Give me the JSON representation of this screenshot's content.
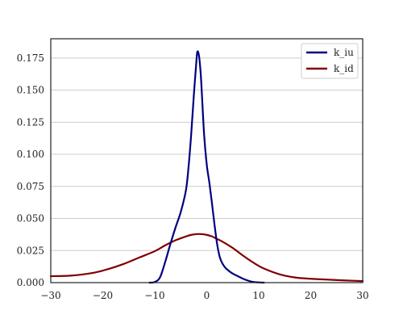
{
  "chart_data": {
    "type": "line",
    "title": "",
    "xlabel": "",
    "ylabel": "",
    "xlim": [
      -30,
      30
    ],
    "ylim": [
      0,
      0.19
    ],
    "grid": "y-only",
    "legend": "top-right",
    "x_ticks": [
      -30,
      -20,
      -10,
      0,
      10,
      20,
      30
    ],
    "x_tick_labels": [
      "−30",
      "−20",
      "−10",
      "0",
      "10",
      "20",
      "30"
    ],
    "y_ticks": [
      0.0,
      0.025,
      0.05,
      0.075,
      0.1,
      0.125,
      0.15,
      0.175
    ],
    "y_tick_labels": [
      "0.000",
      "0.025",
      "0.050",
      "0.075",
      "0.100",
      "0.125",
      "0.150",
      "0.175"
    ],
    "series": [
      {
        "name": "k_iu",
        "color": "#00007f",
        "x": [
          -11.0,
          -10.0,
          -9.0,
          -8.0,
          -7.0,
          -6.0,
          -5.0,
          -4.0,
          -3.5,
          -3.0,
          -2.5,
          -2.0,
          -1.8,
          -1.5,
          -1.2,
          -1.0,
          -0.5,
          0.0,
          0.5,
          1.0,
          1.5,
          2.0,
          2.5,
          3.0,
          3.5,
          4.0,
          5.0,
          6.0,
          7.0,
          8.0,
          9.0,
          10.0,
          11.0
        ],
        "values": [
          0.0,
          0.0005,
          0.004,
          0.016,
          0.03,
          0.043,
          0.055,
          0.072,
          0.09,
          0.115,
          0.145,
          0.172,
          0.18,
          0.177,
          0.165,
          0.152,
          0.115,
          0.092,
          0.078,
          0.062,
          0.045,
          0.03,
          0.02,
          0.015,
          0.012,
          0.01,
          0.007,
          0.005,
          0.003,
          0.0015,
          0.0005,
          0.0002,
          0.0
        ]
      },
      {
        "name": "k_id",
        "color": "#800000",
        "x": [
          -30,
          -26,
          -22,
          -19,
          -16,
          -13,
          -10,
          -8,
          -6,
          -4,
          -3,
          -2,
          -1,
          0,
          1,
          2,
          3,
          5,
          7,
          9,
          11,
          14,
          17,
          20,
          23,
          26,
          30
        ],
        "values": [
          0.005,
          0.0055,
          0.0075,
          0.0105,
          0.0145,
          0.0195,
          0.0245,
          0.029,
          0.033,
          0.036,
          0.0372,
          0.0378,
          0.0378,
          0.0372,
          0.036,
          0.034,
          0.032,
          0.027,
          0.021,
          0.0155,
          0.011,
          0.0065,
          0.004,
          0.003,
          0.0024,
          0.0018,
          0.0012
        ]
      }
    ]
  }
}
